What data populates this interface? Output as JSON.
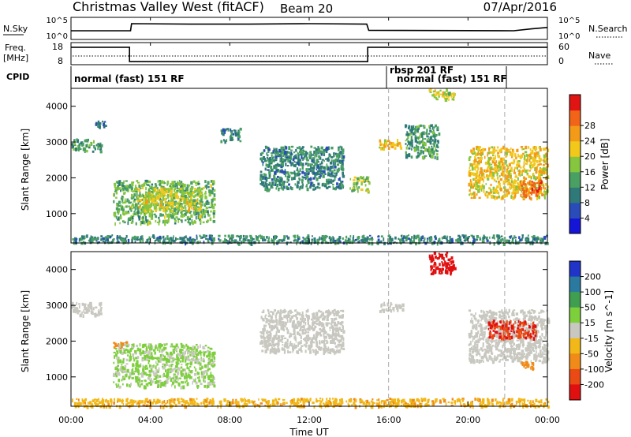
{
  "header": {
    "title": "Christmas Valley West (fitACF)",
    "beam": "Beam 20",
    "date": "07/Apr/2016"
  },
  "panels": {
    "nsky": {
      "label": "N.Sky",
      "ticks": [
        "10^5",
        "10^0"
      ],
      "right_ticks": [
        "10^5",
        "10^0"
      ],
      "right_label": "N.Search"
    },
    "freq": {
      "label": "Freq.",
      "unit": "[MHz]",
      "ticks": [
        "18",
        "8"
      ],
      "right_ticks": [
        "60",
        "0"
      ],
      "right_label": "Nave"
    },
    "cpid": {
      "label": "CPID",
      "programs": [
        "normal (fast) 151 RF",
        "rbsp 201 RF",
        "normal (fast) 151 RF"
      ]
    }
  },
  "axes": {
    "xlabel": "Time UT",
    "xticks": [
      "00:00",
      "04:00",
      "08:00",
      "12:00",
      "16:00",
      "20:00",
      "00:00"
    ],
    "ylabel": "Slant Range [km]",
    "yticks": [
      "1000",
      "2000",
      "3000",
      "4000"
    ]
  },
  "colorbars": {
    "power": {
      "label": "Power [dB]",
      "ticks": [
        "4",
        "8",
        "12",
        "16",
        "20",
        "24",
        "28"
      ],
      "colors": [
        "#1515d8",
        "#2a4cb8",
        "#2f7a78",
        "#4aa063",
        "#86c63e",
        "#f2c81a",
        "#f39a18",
        "#f26418",
        "#e11414"
      ]
    },
    "velocity": {
      "label": "Velocity [m s^-1]",
      "ticks": [
        "200",
        "100",
        "50",
        "15",
        "-15",
        "-50",
        "-100",
        "-200"
      ],
      "colors": [
        "#2034c8",
        "#2a7aa0",
        "#3f9e50",
        "#7ecf3c",
        "#c8c8c0",
        "#f2b818",
        "#f08a18",
        "#ea4a14",
        "#e01010"
      ]
    }
  },
  "chart_data": {
    "type": "heatmap",
    "title": "Christmas Valley West (fitACF)",
    "subtitle": "Beam 20",
    "date": "07/Apr/2016",
    "xlabel": "Time UT",
    "ylabel": "Slant Range [km]",
    "x_range_hours": [
      0,
      24
    ],
    "y_range_km": [
      180,
      4500
    ],
    "dashed_time_markers_hours": [
      16.0,
      21.85
    ],
    "nsky_level": [
      [
        0,
        1.5
      ],
      [
        3,
        1.5
      ],
      [
        3.05,
        3.0
      ],
      [
        6,
        2.9
      ],
      [
        9,
        2.9
      ],
      [
        12,
        3.0
      ],
      [
        14.9,
        2.9
      ],
      [
        15,
        1.6
      ],
      [
        22.3,
        1.5
      ],
      [
        23.2,
        1.9
      ],
      [
        24,
        2.2
      ]
    ],
    "frequency_mhz": [
      {
        "start": 0,
        "end": 2.95,
        "value": 16.5
      },
      {
        "start": 2.95,
        "end": 14.95,
        "value": 9.5
      },
      {
        "start": 14.95,
        "end": 24,
        "value": 16.5
      }
    ],
    "cpid": [
      {
        "start": 0,
        "end": 16.0,
        "program": "normal (fast) 151 RF"
      },
      {
        "start": 16.0,
        "end": 16.3,
        "program": "rbsp 201 RF"
      },
      {
        "start": 16.3,
        "end": 21.85,
        "program": "normal (fast) 151 RF"
      }
    ],
    "power_db": [
      {
        "t0": 0.0,
        "t1": 1.5,
        "r0": 2750,
        "r1": 3100,
        "level": 12
      },
      {
        "t0": 1.2,
        "t1": 1.7,
        "r0": 3450,
        "r1": 3600,
        "level": 10
      },
      {
        "t0": 2.1,
        "t1": 7.2,
        "r0": 750,
        "r1": 1950,
        "level": 14
      },
      {
        "t0": 3.3,
        "t1": 6.5,
        "r0": 1100,
        "r1": 1750,
        "level": 18
      },
      {
        "t0": 7.5,
        "t1": 8.5,
        "r0": 3050,
        "r1": 3400,
        "level": 10
      },
      {
        "t0": 9.5,
        "t1": 13.7,
        "r0": 1700,
        "r1": 2900,
        "level": 10
      },
      {
        "t0": 14.0,
        "t1": 15.0,
        "r0": 1650,
        "r1": 2050,
        "level": 16
      },
      {
        "t0": 15.5,
        "t1": 16.7,
        "r0": 2850,
        "r1": 3100,
        "level": 20
      },
      {
        "t0": 16.8,
        "t1": 18.5,
        "r0": 2600,
        "r1": 3500,
        "level": 12
      },
      {
        "t0": 18.0,
        "t1": 19.3,
        "r0": 4200,
        "r1": 4500,
        "level": 18
      },
      {
        "t0": 20.0,
        "t1": 24.0,
        "r0": 1450,
        "r1": 2900,
        "level": 20
      },
      {
        "t0": 22.6,
        "t1": 23.7,
        "r0": 1500,
        "r1": 1950,
        "level": 26
      },
      {
        "t0": 0.0,
        "t1": 24.0,
        "r0": 200,
        "r1": 420,
        "level": 10
      }
    ],
    "velocity_ms": [
      {
        "t0": 0.0,
        "t1": 1.5,
        "r0": 2750,
        "r1": 3100,
        "value": 0
      },
      {
        "t0": 2.1,
        "t1": 2.8,
        "r0": 1850,
        "r1": 2050,
        "value": -80
      },
      {
        "t0": 2.1,
        "t1": 7.2,
        "r0": 750,
        "r1": 1950,
        "value": 20
      },
      {
        "t0": 9.5,
        "t1": 13.7,
        "r0": 1700,
        "r1": 2900,
        "value": 0
      },
      {
        "t0": 15.5,
        "t1": 16.7,
        "r0": 2850,
        "r1": 3100,
        "value": 0
      },
      {
        "t0": 18.0,
        "t1": 19.3,
        "r0": 3900,
        "r1": 4500,
        "value": -220
      },
      {
        "t0": 20.0,
        "t1": 24.0,
        "r0": 1450,
        "r1": 2900,
        "value": 0
      },
      {
        "t0": 21.0,
        "t1": 23.4,
        "r0": 2100,
        "r1": 2600,
        "value": -200
      },
      {
        "t0": 22.6,
        "t1": 23.3,
        "r0": 1250,
        "r1": 1450,
        "value": -80
      },
      {
        "t0": 0.0,
        "t1": 24.0,
        "r0": 200,
        "r1": 420,
        "value": -40
      }
    ]
  }
}
